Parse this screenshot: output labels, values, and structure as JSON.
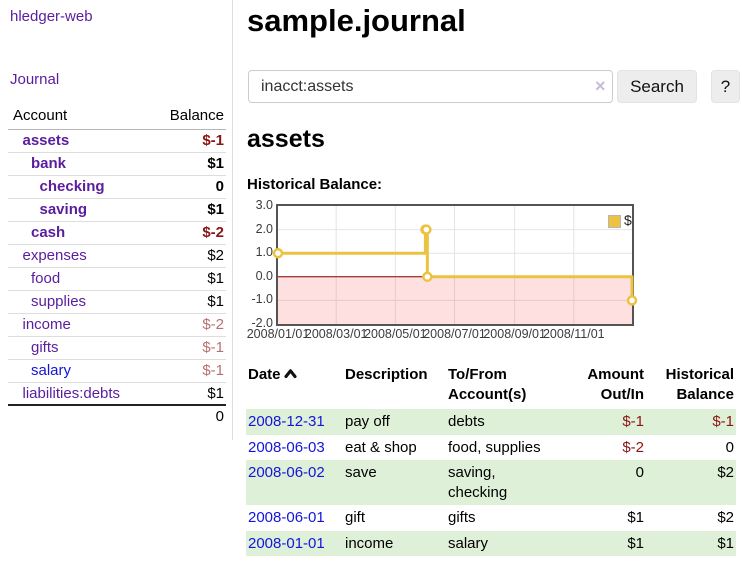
{
  "sidebar": {
    "app_title": "hledger-web",
    "journal_link": "Journal",
    "accounts_header": {
      "account": "Account",
      "balance": "Balance"
    },
    "accounts": [
      {
        "name": "assets",
        "depth": 1,
        "bold": true,
        "balance": "$-1",
        "balance_style": "negative-strong",
        "link_color": "purple"
      },
      {
        "name": "bank",
        "depth": 2,
        "bold": true,
        "balance": "$1",
        "balance_style": "normal",
        "link_color": "purple"
      },
      {
        "name": "checking",
        "depth": 3,
        "bold": true,
        "balance": "0",
        "balance_style": "normal",
        "link_color": "purple"
      },
      {
        "name": "saving",
        "depth": 3,
        "bold": true,
        "balance": "$1",
        "balance_style": "normal",
        "link_color": "purple"
      },
      {
        "name": "cash",
        "depth": 2,
        "bold": true,
        "balance": "$-2",
        "balance_style": "negative-strong",
        "link_color": "purple"
      },
      {
        "name": "expenses",
        "depth": 1,
        "bold": false,
        "balance": "$2",
        "balance_style": "normal",
        "link_color": "purple"
      },
      {
        "name": "food",
        "depth": 2,
        "bold": false,
        "balance": "$1",
        "balance_style": "normal",
        "link_color": "purple"
      },
      {
        "name": "supplies",
        "depth": 2,
        "bold": false,
        "balance": "$1",
        "balance_style": "normal",
        "link_color": "purple"
      },
      {
        "name": "income",
        "depth": 1,
        "bold": false,
        "balance": "$-2",
        "balance_style": "negative-muted",
        "link_color": "purple"
      },
      {
        "name": "gifts",
        "depth": 2,
        "bold": false,
        "balance": "$-1",
        "balance_style": "negative-muted",
        "link_color": "purple"
      },
      {
        "name": "salary",
        "depth": 2,
        "bold": false,
        "balance": "$-1",
        "balance_style": "negative-muted",
        "link_color": "blue"
      },
      {
        "name": "liabilities:debts",
        "depth": 1,
        "bold": false,
        "balance": "$1",
        "balance_style": "normal",
        "link_color": "purple"
      }
    ],
    "total": "0"
  },
  "main": {
    "title": "sample.journal",
    "account_heading": "assets",
    "chart_title": "Historical Balance:"
  },
  "search": {
    "value": "inacct:assets",
    "clear_icon": "×",
    "button_label": "Search",
    "help_label": "?"
  },
  "chart_data": {
    "type": "line",
    "step": true,
    "x_range": [
      "2008-01-01",
      "2008-12-31"
    ],
    "ylim": [
      -2,
      3
    ],
    "y_ticks": [
      {
        "v": 3,
        "label": "3.0"
      },
      {
        "v": 2,
        "label": "2.0"
      },
      {
        "v": 1,
        "label": "1.0"
      },
      {
        "v": 0,
        "label": "0.0"
      },
      {
        "v": -1,
        "label": "-1.0"
      },
      {
        "v": -2,
        "label": "-2.0"
      }
    ],
    "x_ticks": [
      {
        "date": "2008-01-01",
        "label": "2008/01/01"
      },
      {
        "date": "2008-03-01",
        "label": "2008/03/01"
      },
      {
        "date": "2008-05-01",
        "label": "2008/05/01"
      },
      {
        "date": "2008-07-01",
        "label": "2008/07/01"
      },
      {
        "date": "2008-09-01",
        "label": "2008/09/01"
      },
      {
        "date": "2008-11-01",
        "label": "2008/11/01"
      }
    ],
    "series": [
      {
        "name": "$",
        "color": "#edc240",
        "points": [
          {
            "date": "2008-01-01",
            "value": 1
          },
          {
            "date": "2008-06-01",
            "value": 2
          },
          {
            "date": "2008-06-02",
            "value": 2
          },
          {
            "date": "2008-06-03",
            "value": 0
          },
          {
            "date": "2008-12-31",
            "value": -1
          }
        ]
      }
    ],
    "legend": {
      "label": "$",
      "position": "top-right"
    },
    "grid": true,
    "gridline_color": "#e4e4e4",
    "border_color": "#545454",
    "zero_line_color": "#8b0000",
    "negative_region_color": "rgba(255,0,0,0.12)"
  },
  "register": {
    "headers": {
      "date": "Date",
      "description": "Description",
      "accounts": "To/From Account(s)",
      "amount": "Amount Out/In",
      "balance": "Historical Balance"
    },
    "sort_icon": "chevron-up",
    "rows": [
      {
        "date": "2008-12-31",
        "description": "pay off",
        "accounts": "debts",
        "amount": "$-1",
        "balance": "$-1"
      },
      {
        "date": "2008-06-03",
        "description": "eat & shop",
        "accounts": "food, supplies",
        "amount": "$-2",
        "balance": "0"
      },
      {
        "date": "2008-06-02",
        "description": "save",
        "accounts": "saving, checking",
        "amount": "0",
        "balance": "$2"
      },
      {
        "date": "2008-06-01",
        "description": "gift",
        "accounts": "gifts",
        "amount": "$1",
        "balance": "$2"
      },
      {
        "date": "2008-01-01",
        "description": "income",
        "accounts": "salary",
        "amount": "$1",
        "balance": "$1"
      }
    ]
  },
  "colors": {
    "link_purple": "#5a1d9e",
    "link_blue": "#1414dd",
    "negative_strong": "#8b1515",
    "negative_muted": "#b97070",
    "row_green": "#dff0d8",
    "series_gold": "#edc240"
  }
}
